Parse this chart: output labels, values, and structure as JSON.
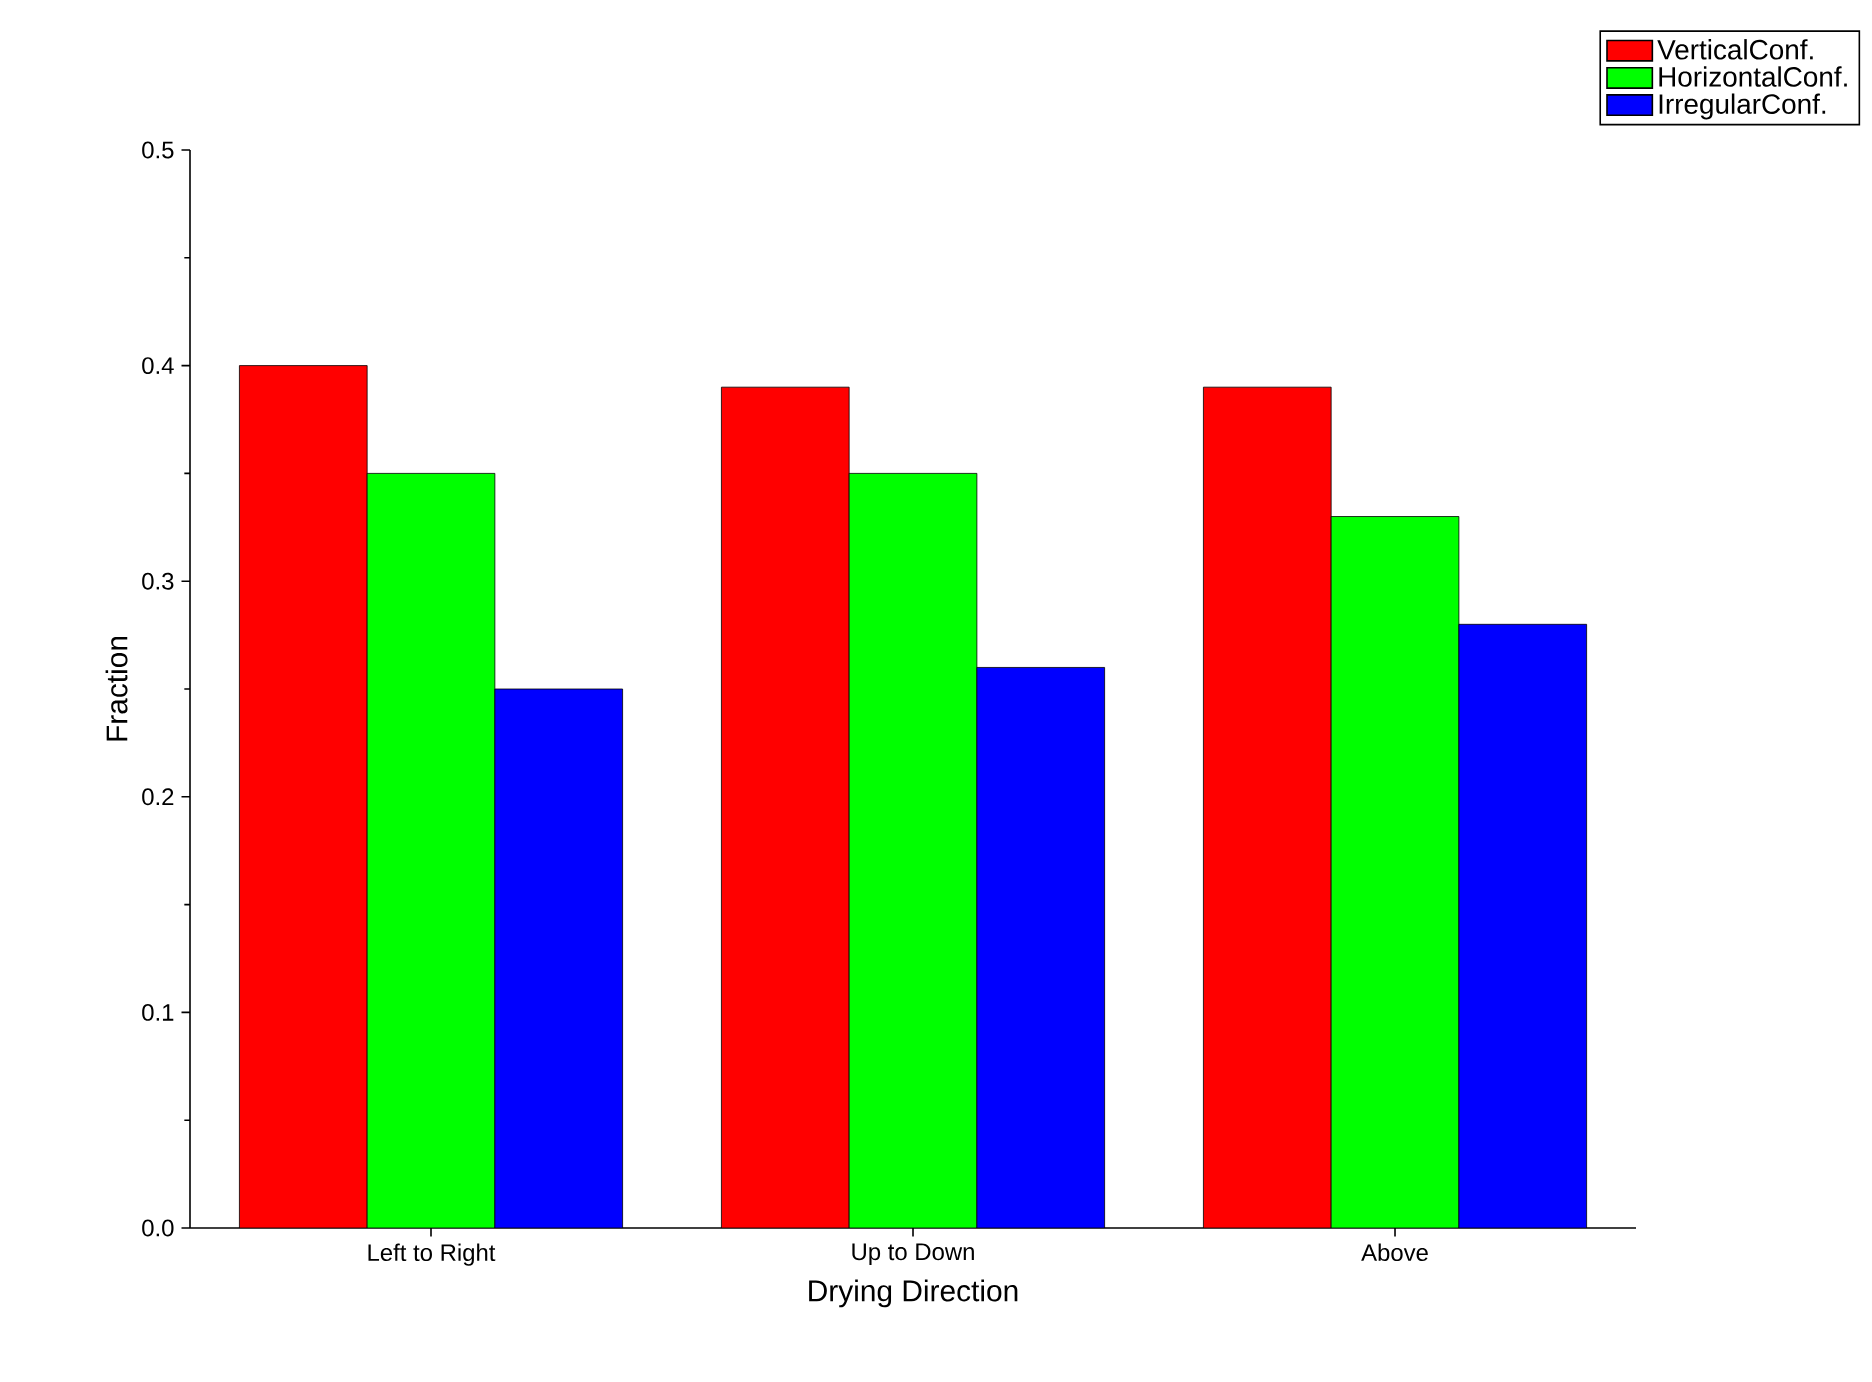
{
  "chart_data": {
    "type": "bar",
    "xlabel": "Drying Direction",
    "ylabel": "Fraction",
    "categories": [
      "Left to Right",
      "Up to Down",
      "Above"
    ],
    "series": [
      {
        "name": "VerticalConf.",
        "color": "#ff0000",
        "values": [
          0.4,
          0.39,
          0.39
        ]
      },
      {
        "name": "HorizontalConf.",
        "color": "#00ff00",
        "values": [
          0.35,
          0.35,
          0.33
        ]
      },
      {
        "name": "IrregularConf.",
        "color": "#0000ff",
        "values": [
          0.25,
          0.26,
          0.28
        ]
      }
    ],
    "ylim": [
      0,
      0.5
    ],
    "yticks": [
      {
        "value": 0,
        "label": "0.0"
      },
      {
        "value": 0.1,
        "label": "0.1"
      },
      {
        "value": 0.2,
        "label": "0.2"
      },
      {
        "value": 0.3,
        "label": "0.3"
      },
      {
        "value": 0.4,
        "label": "0.4"
      },
      {
        "value": 0.5,
        "label": "0.5"
      }
    ],
    "legend": "top right"
  }
}
